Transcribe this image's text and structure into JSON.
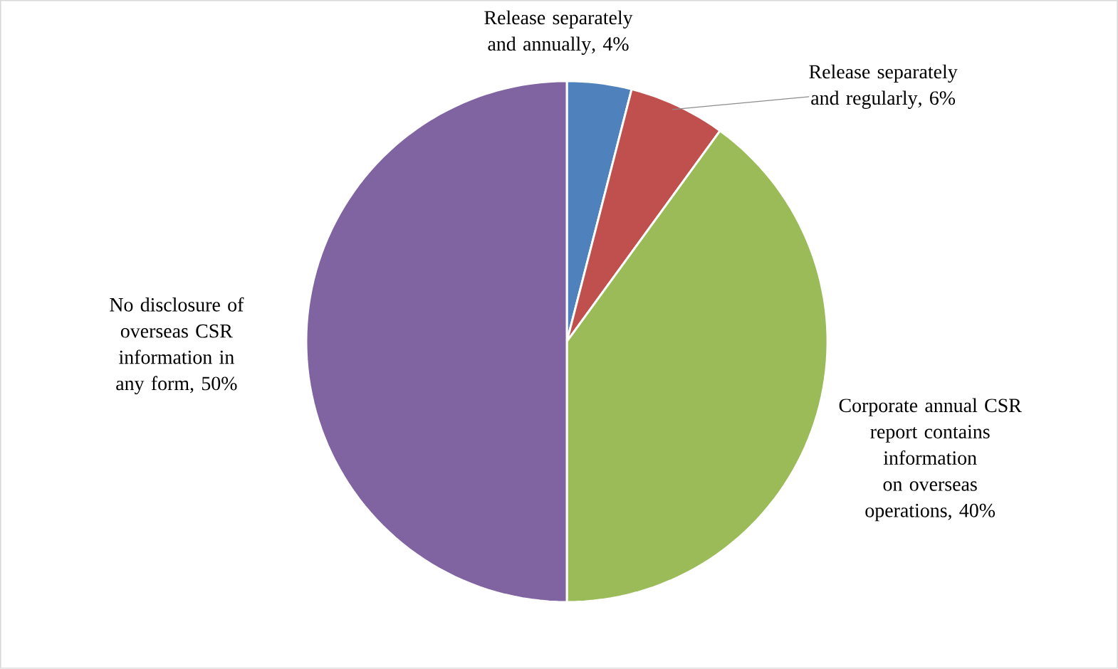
{
  "chart_data": {
    "type": "pie",
    "categories": [
      "Release separately and annually",
      "Release separately and regularly",
      "Corporate annual CSR report contains information on overseas operations",
      "No disclosure of overseas CSR information in any form"
    ],
    "values": [
      4,
      6,
      40,
      50
    ],
    "value_labels": [
      ", 4%",
      ", 6%",
      ", 40%",
      ", 50%"
    ],
    "colors": [
      "#4f81bd",
      "#c0504d",
      "#9bbb59",
      "#8064a2"
    ]
  }
}
